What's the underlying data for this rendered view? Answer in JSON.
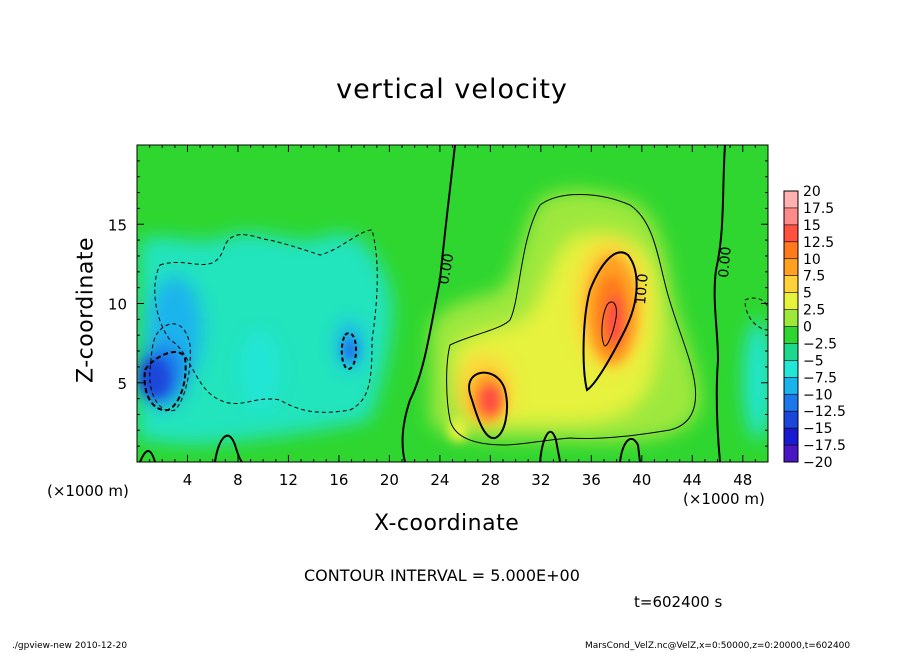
{
  "chart_data": {
    "type": "heatmap",
    "title": "vertical velocity",
    "xlabel": "X-coordinate",
    "ylabel": "Z-coordinate",
    "x_unit": "(×1000 m)",
    "xlim": [
      0,
      50
    ],
    "ylim": [
      0,
      20
    ],
    "x_ticks": [
      4,
      8,
      12,
      16,
      20,
      24,
      28,
      32,
      36,
      40,
      44,
      48
    ],
    "y_ticks": [
      5,
      10,
      15
    ],
    "contour_labels": [
      "0.00",
      "10.0",
      "0.00"
    ],
    "colorbar": {
      "levels": [
        "20",
        "17.5",
        "15",
        "12.5",
        "10",
        "7.5",
        "5",
        "2.5",
        "0",
        "−2.5",
        "−5",
        "−7.5",
        "−10",
        "−12.5",
        "−15",
        "−17.5",
        "−20"
      ],
      "colors": [
        "#ffb0b0",
        "#ff8a8a",
        "#ff5040",
        "#ff7a1c",
        "#ffa020",
        "#ffd23a",
        "#e6f23c",
        "#9ee83c",
        "#2fd62f",
        "#1cd88c",
        "#22e6d6",
        "#1ab4ec",
        "#1a78ea",
        "#1c46da",
        "#1a1ad0",
        "#4a16c4",
        "#7a20b4"
      ]
    },
    "features": [
      {
        "name": "updraft core",
        "x": 38,
        "z": 9,
        "w": 16
      },
      {
        "name": "updraft low",
        "x": 28.5,
        "z": 4,
        "w": 15
      },
      {
        "name": "downdraft",
        "x": 2,
        "z": 5,
        "w": -11
      },
      {
        "name": "downdraft",
        "x": 16.5,
        "z": 7,
        "w": -9
      }
    ]
  },
  "annotations": {
    "contour_interval": "CONTOUR INTERVAL = 5.000E+00",
    "time": "t=602400 s",
    "footer_left": "./gpview-new  2010-12-20",
    "footer_right": "MarsCond_VelZ.nc@VelZ,x=0:50000,z=0:20000,t=602400"
  }
}
